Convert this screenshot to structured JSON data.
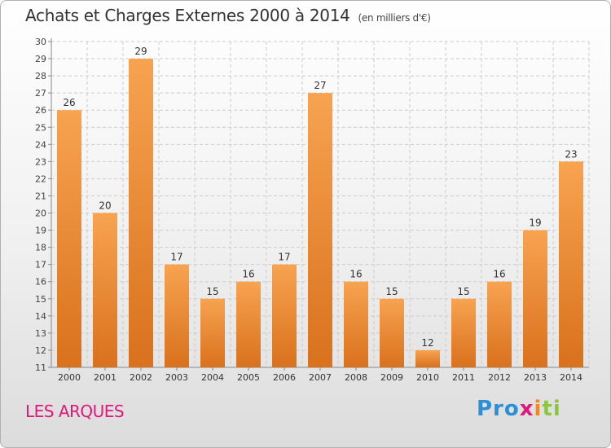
{
  "header": {
    "title": "Achats et Charges Externes 2000 à 2014",
    "subtitle": "(en milliers d'€)"
  },
  "footer": {
    "town": "LES ARQUES",
    "logo": {
      "p1": "Pro",
      "p2": "x",
      "p3": "i",
      "p4": "ti"
    }
  },
  "colors": {
    "bar_light": "#f7a350",
    "bar_dark": "#d9711d",
    "grid": "#cccccc"
  },
  "chart_data": {
    "type": "bar",
    "title": "Achats et Charges Externes 2000 à 2014",
    "subtitle": "(en milliers d'€)",
    "categories": [
      "2000",
      "2001",
      "2002",
      "2003",
      "2004",
      "2005",
      "2006",
      "2007",
      "2008",
      "2009",
      "2010",
      "2011",
      "2012",
      "2013",
      "2014"
    ],
    "values": [
      26,
      20,
      29,
      17,
      15,
      16,
      17,
      27,
      16,
      15,
      12,
      15,
      16,
      19,
      23
    ],
    "ylim": [
      11,
      30
    ],
    "yticks": [
      11,
      12,
      13,
      14,
      15,
      16,
      17,
      18,
      19,
      20,
      21,
      22,
      23,
      24,
      25,
      26,
      27,
      28,
      29,
      30
    ],
    "grid": true,
    "legend": "none"
  }
}
